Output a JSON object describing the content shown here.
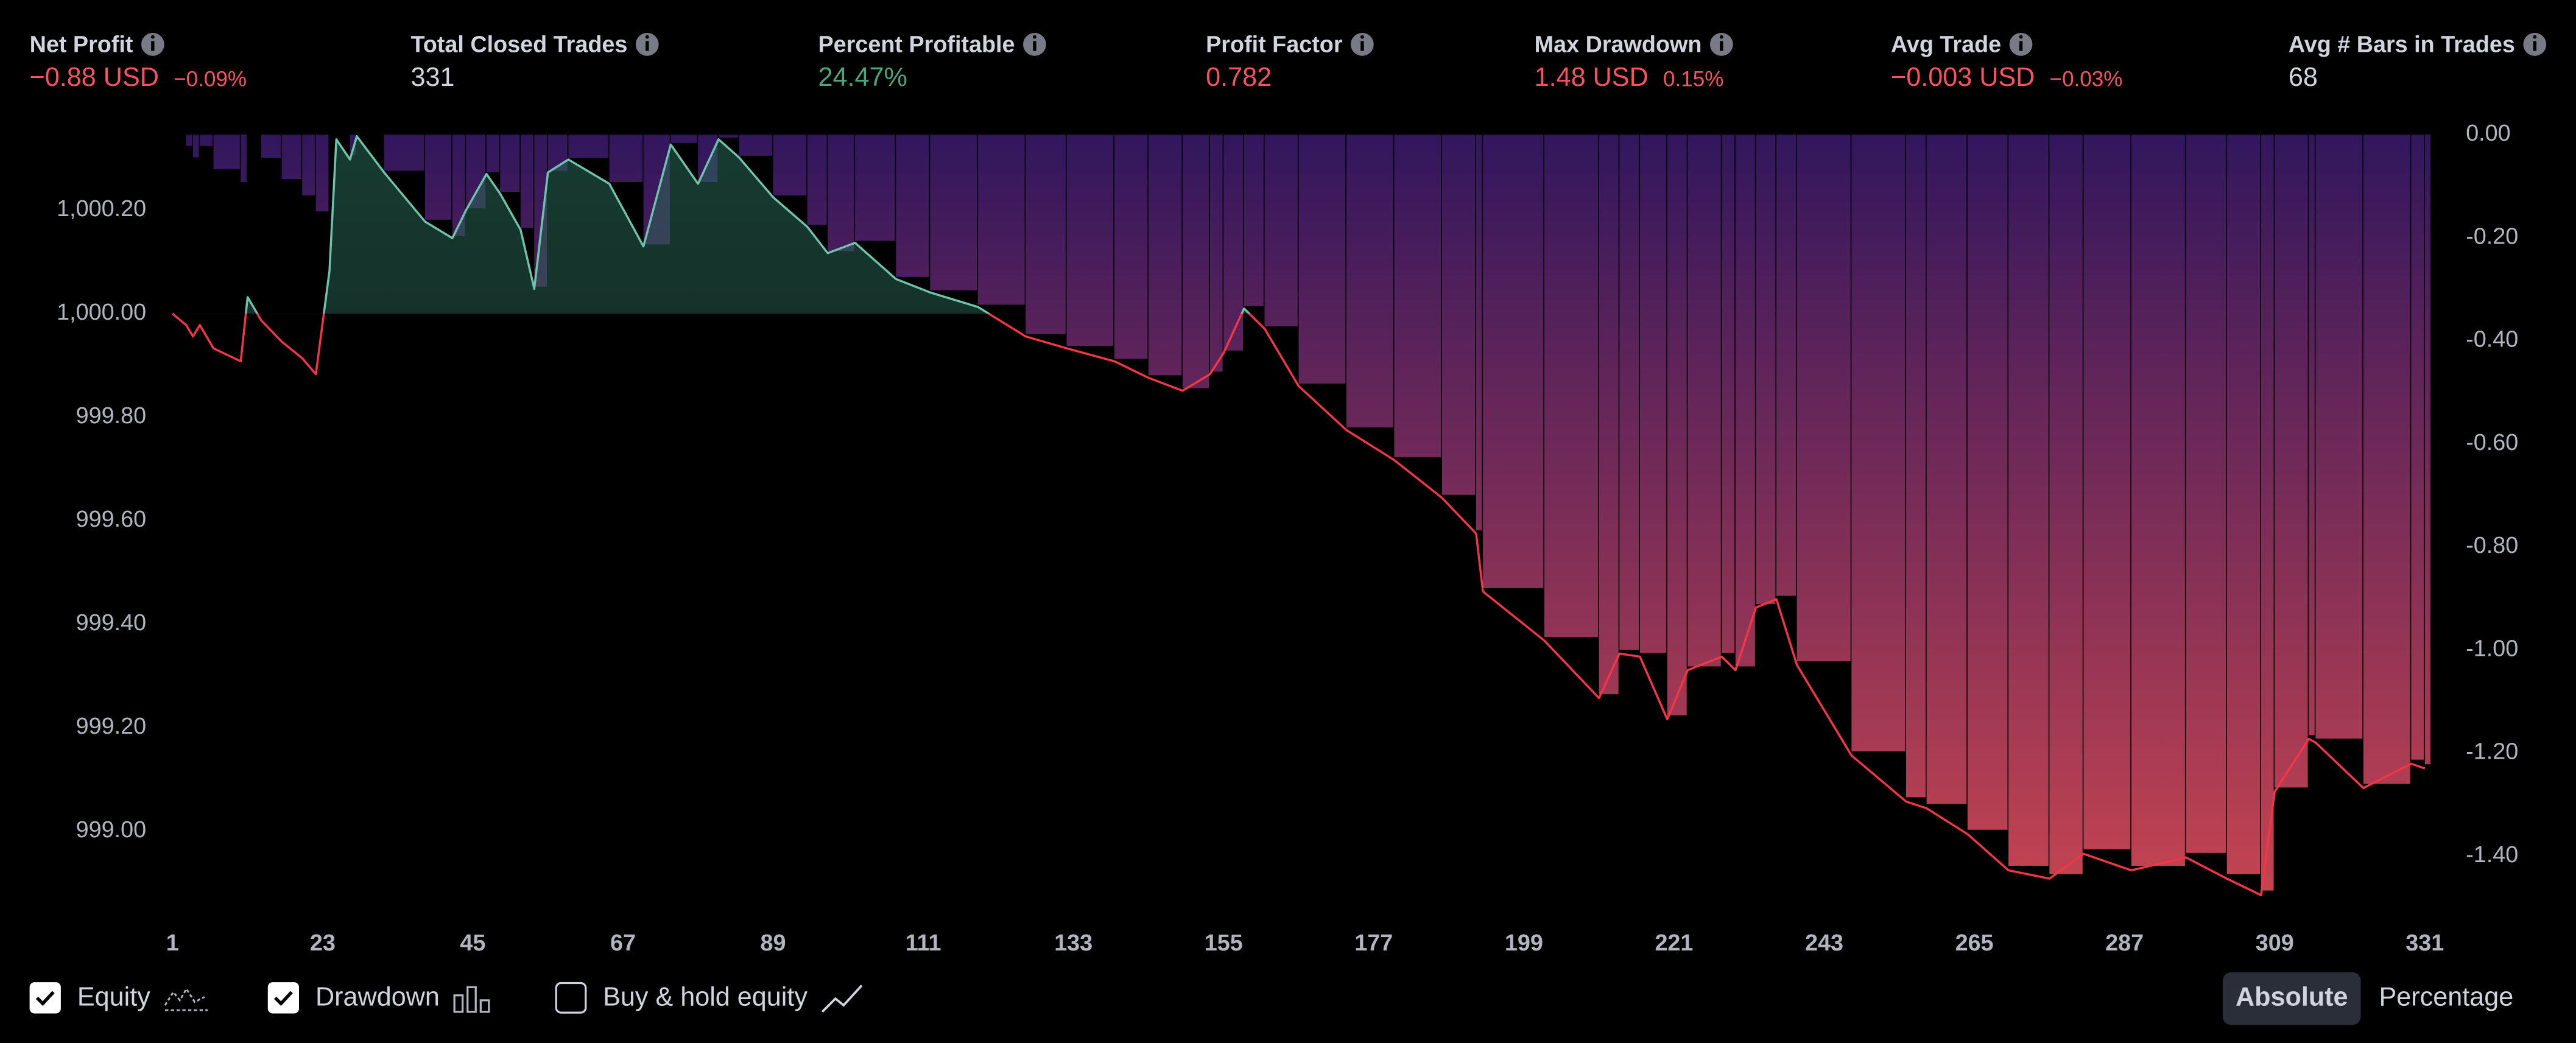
{
  "stats": [
    {
      "label": "Net Profit",
      "value": "−0.88 USD",
      "sub": "−0.09%",
      "tone": "neg"
    },
    {
      "label": "Total Closed Trades",
      "value": "331",
      "tone": "neutral"
    },
    {
      "label": "Percent Profitable",
      "value": "24.47%",
      "tone": "pos"
    },
    {
      "label": "Profit Factor",
      "value": "0.782",
      "tone": "neg"
    },
    {
      "label": "Max Drawdown",
      "value": "1.48 USD",
      "sub": "0.15%",
      "tone": "neg"
    },
    {
      "label": "Avg Trade",
      "value": "−0.003 USD",
      "sub": "−0.03%",
      "tone": "neg"
    },
    {
      "label": "Avg # Bars in Trades",
      "value": "68",
      "tone": "neutral"
    }
  ],
  "chart_data": {
    "type": "line",
    "x": [
      1,
      3,
      4,
      5,
      7,
      11,
      12,
      14,
      17,
      20,
      22,
      24,
      25,
      27,
      28,
      32,
      38,
      42,
      44,
      47,
      49,
      52,
      54,
      56,
      59,
      65,
      70,
      74,
      78,
      81,
      84,
      89,
      94,
      97,
      101,
      107,
      112,
      119,
      126,
      132,
      139,
      144,
      149,
      153,
      155,
      158,
      161,
      166,
      173,
      180,
      187,
      192,
      193,
      202,
      210,
      213,
      216,
      220,
      223,
      228,
      230,
      233,
      236,
      239,
      247,
      255,
      258,
      264,
      270,
      276,
      281,
      288,
      296,
      302,
      307,
      309,
      314,
      315,
      322,
      329,
      331
    ],
    "series": [
      {
        "up_color": "#6fc3ab",
        "down_color": "#f23645",
        "values": [
          1000.0,
          999.978,
          999.956,
          999.978,
          999.933,
          999.908,
          1000.032,
          999.987,
          999.946,
          999.914,
          999.883,
          1000.083,
          1000.337,
          1000.298,
          1000.343,
          1000.273,
          1000.178,
          1000.146,
          1000.2,
          1000.27,
          1000.232,
          1000.162,
          1000.048,
          1000.273,
          1000.298,
          1000.251,
          1000.13,
          1000.327,
          1000.251,
          1000.337,
          1000.302,
          1000.225,
          1000.168,
          1000.117,
          1000.137,
          1000.067,
          1000.041,
          1000.013,
          999.956,
          999.933,
          999.908,
          999.876,
          999.851,
          999.883,
          999.924,
          1000.01,
          999.971,
          999.86,
          999.775,
          999.717,
          999.644,
          999.575,
          999.463,
          999.368,
          999.257,
          999.343,
          999.337,
          999.216,
          999.311,
          999.337,
          999.311,
          999.432,
          999.448,
          999.321,
          999.146,
          999.057,
          999.044,
          998.994,
          998.924,
          998.908,
          998.956,
          998.924,
          998.949,
          998.908,
          998.876,
          999.076,
          999.178,
          999.171,
          999.083,
          999.13,
          999.121
        ]
      },
      {
        "type": "bar",
        "axis": "y2",
        "top_color": "#3a1a6e",
        "bottom_color": "#e8505f",
        "values": [
          0,
          -0.022,
          -0.044,
          -0.022,
          -0.067,
          -0.092,
          0,
          -0.045,
          -0.086,
          -0.118,
          -0.149,
          0,
          0,
          -0.039,
          0,
          -0.07,
          -0.165,
          -0.197,
          -0.143,
          -0.073,
          -0.111,
          -0.181,
          -0.295,
          -0.07,
          -0.045,
          -0.092,
          -0.213,
          -0.016,
          -0.092,
          -0.006,
          -0.041,
          -0.118,
          -0.175,
          -0.226,
          -0.206,
          -0.276,
          -0.302,
          -0.33,
          -0.387,
          -0.41,
          -0.435,
          -0.467,
          -0.492,
          -0.46,
          -0.419,
          -0.333,
          -0.372,
          -0.483,
          -0.568,
          -0.626,
          -0.699,
          -0.768,
          -0.88,
          -0.975,
          -1.086,
          -1.0,
          -1.006,
          -1.127,
          -1.032,
          -1.006,
          -1.032,
          -0.911,
          -0.895,
          -1.022,
          -1.197,
          -1.286,
          -1.299,
          -1.349,
          -1.419,
          -1.435,
          -1.387,
          -1.419,
          -1.394,
          -1.435,
          -1.467,
          -1.267,
          -1.165,
          -1.172,
          -1.26,
          -1.213,
          -1.222
        ]
      }
    ],
    "xlim": [
      1,
      331
    ],
    "xticks": [
      1,
      23,
      45,
      67,
      89,
      111,
      133,
      155,
      177,
      199,
      221,
      243,
      265,
      287,
      309,
      331
    ],
    "ylim": [
      998.876,
      1000.346
    ],
    "yticks": [
      {
        "value": 1000.2,
        "label": "1,000.20"
      },
      {
        "value": 1000,
        "label": "1,000.00"
      },
      {
        "value": 999.8,
        "label": "999.80"
      },
      {
        "value": 999.6,
        "label": "999.60"
      },
      {
        "value": 999.4,
        "label": "999.40"
      },
      {
        "value": 999.2,
        "label": "999.20"
      },
      {
        "value": 999,
        "label": "999.00"
      }
    ],
    "y2lim": [
      -1.476,
      0
    ],
    "y2ticks": [
      {
        "value": 0,
        "label": "0.00"
      },
      {
        "value": -0.2,
        "label": "-0.20"
      },
      {
        "value": -0.4,
        "label": "-0.40"
      },
      {
        "value": -0.6,
        "label": "-0.60"
      },
      {
        "value": -0.8,
        "label": "-0.80"
      },
      {
        "value": -1,
        "label": "-1.00"
      },
      {
        "value": -1.2,
        "label": "-1.20"
      },
      {
        "value": -1.4,
        "label": "-1.40"
      }
    ]
  },
  "toggles": [
    {
      "label": "Equity",
      "checked": true,
      "icon": "equity"
    },
    {
      "label": "Drawdown",
      "checked": true,
      "icon": "bars"
    },
    {
      "label": "Buy & hold equity",
      "checked": false,
      "icon": "line"
    }
  ],
  "view_buttons": [
    {
      "label": "Absolute",
      "active": true
    },
    {
      "label": "Percentage",
      "active": false
    }
  ]
}
